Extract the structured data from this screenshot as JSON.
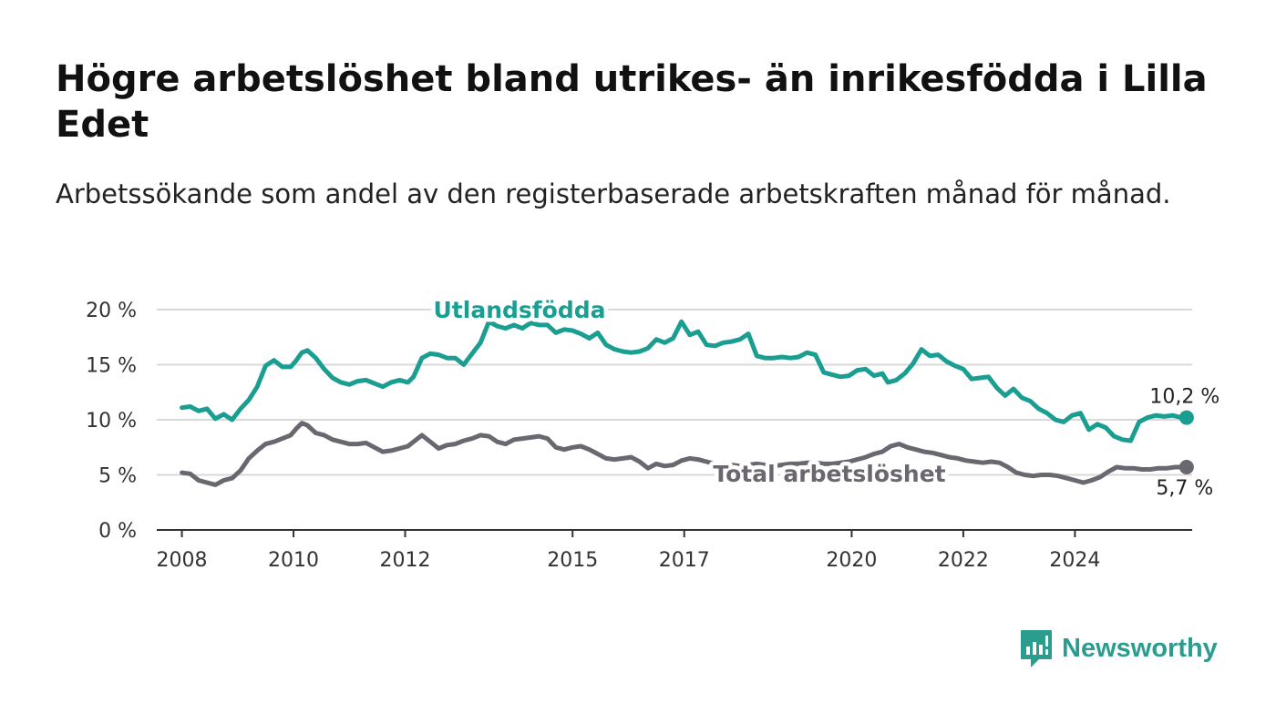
{
  "title": "Högre arbetslöshet bland utrikes- än inrikesfödda i Lilla Edet",
  "subtitle": "Arbetssökande som andel av den registerbaserade arbetskraften månad för månad.",
  "brand": {
    "name": "Newsworthy",
    "color": "#2a9d8f"
  },
  "chart_data": {
    "type": "line",
    "x_unit": "year",
    "xlim": [
      2007.55,
      2026.1
    ],
    "ylim": [
      0,
      20
    ],
    "x_ticks": [
      {
        "value": 2008,
        "label": "2008"
      },
      {
        "value": 2010,
        "label": "2010"
      },
      {
        "value": 2012,
        "label": "2012"
      },
      {
        "value": 2015,
        "label": "2015"
      },
      {
        "value": 2017,
        "label": "2017"
      },
      {
        "value": 2020,
        "label": "2020"
      },
      {
        "value": 2022,
        "label": "2022"
      },
      {
        "value": 2024,
        "label": "2024"
      }
    ],
    "y_ticks": [
      {
        "value": 0,
        "label": "0 %"
      },
      {
        "value": 5,
        "label": "5 %"
      },
      {
        "value": 10,
        "label": "10 %"
      },
      {
        "value": 15,
        "label": "15 %"
      },
      {
        "value": 20,
        "label": "20 %"
      }
    ],
    "grid": true,
    "series": [
      {
        "name": "Utlandsfödda",
        "color": "#1a9e92",
        "end_label": "10,2 %",
        "points": [
          [
            2008.0,
            11.1
          ],
          [
            2008.15,
            11.2
          ],
          [
            2008.3,
            10.8
          ],
          [
            2008.45,
            11.0
          ],
          [
            2008.6,
            10.1
          ],
          [
            2008.75,
            10.5
          ],
          [
            2008.9,
            10.0
          ],
          [
            2009.05,
            11.0
          ],
          [
            2009.2,
            11.8
          ],
          [
            2009.35,
            13.0
          ],
          [
            2009.5,
            14.9
          ],
          [
            2009.65,
            15.4
          ],
          [
            2009.8,
            14.8
          ],
          [
            2009.95,
            14.8
          ],
          [
            2010.05,
            15.4
          ],
          [
            2010.15,
            16.1
          ],
          [
            2010.25,
            16.3
          ],
          [
            2010.4,
            15.6
          ],
          [
            2010.55,
            14.6
          ],
          [
            2010.7,
            13.8
          ],
          [
            2010.85,
            13.4
          ],
          [
            2011.0,
            13.2
          ],
          [
            2011.15,
            13.5
          ],
          [
            2011.3,
            13.6
          ],
          [
            2011.45,
            13.3
          ],
          [
            2011.6,
            13.0
          ],
          [
            2011.75,
            13.4
          ],
          [
            2011.9,
            13.6
          ],
          [
            2012.05,
            13.4
          ],
          [
            2012.15,
            13.9
          ],
          [
            2012.3,
            15.6
          ],
          [
            2012.45,
            16.0
          ],
          [
            2012.6,
            15.9
          ],
          [
            2012.75,
            15.6
          ],
          [
            2012.9,
            15.6
          ],
          [
            2013.05,
            15.0
          ],
          [
            2013.2,
            16.0
          ],
          [
            2013.35,
            17.0
          ],
          [
            2013.5,
            18.9
          ],
          [
            2013.65,
            18.5
          ],
          [
            2013.8,
            18.3
          ],
          [
            2013.95,
            18.6
          ],
          [
            2014.1,
            18.3
          ],
          [
            2014.25,
            18.8
          ],
          [
            2014.4,
            18.6
          ],
          [
            2014.55,
            18.6
          ],
          [
            2014.7,
            17.9
          ],
          [
            2014.85,
            18.2
          ],
          [
            2015.0,
            18.1
          ],
          [
            2015.15,
            17.8
          ],
          [
            2015.3,
            17.4
          ],
          [
            2015.45,
            17.9
          ],
          [
            2015.6,
            16.8
          ],
          [
            2015.75,
            16.4
          ],
          [
            2015.9,
            16.2
          ],
          [
            2016.05,
            16.1
          ],
          [
            2016.2,
            16.2
          ],
          [
            2016.35,
            16.5
          ],
          [
            2016.5,
            17.3
          ],
          [
            2016.65,
            17.0
          ],
          [
            2016.8,
            17.4
          ],
          [
            2016.95,
            18.9
          ],
          [
            2017.1,
            17.7
          ],
          [
            2017.25,
            18.0
          ],
          [
            2017.4,
            16.8
          ],
          [
            2017.55,
            16.7
          ],
          [
            2017.7,
            17.0
          ],
          [
            2017.85,
            17.1
          ],
          [
            2018.0,
            17.3
          ],
          [
            2018.15,
            17.8
          ],
          [
            2018.3,
            15.8
          ],
          [
            2018.45,
            15.6
          ],
          [
            2018.6,
            15.6
          ],
          [
            2018.75,
            15.7
          ],
          [
            2018.9,
            15.6
          ],
          [
            2019.05,
            15.7
          ],
          [
            2019.2,
            16.1
          ],
          [
            2019.35,
            15.9
          ],
          [
            2019.5,
            14.3
          ],
          [
            2019.65,
            14.1
          ],
          [
            2019.8,
            13.9
          ],
          [
            2019.95,
            14.0
          ],
          [
            2020.1,
            14.5
          ],
          [
            2020.25,
            14.6
          ],
          [
            2020.4,
            14.0
          ],
          [
            2020.55,
            14.2
          ],
          [
            2020.65,
            13.4
          ],
          [
            2020.8,
            13.6
          ],
          [
            2020.95,
            14.2
          ],
          [
            2021.1,
            15.1
          ],
          [
            2021.25,
            16.4
          ],
          [
            2021.4,
            15.8
          ],
          [
            2021.55,
            15.9
          ],
          [
            2021.7,
            15.3
          ],
          [
            2021.85,
            14.9
          ],
          [
            2022.0,
            14.6
          ],
          [
            2022.15,
            13.7
          ],
          [
            2022.3,
            13.8
          ],
          [
            2022.45,
            13.9
          ],
          [
            2022.6,
            12.9
          ],
          [
            2022.75,
            12.2
          ],
          [
            2022.9,
            12.8
          ],
          [
            2023.05,
            12.0
          ],
          [
            2023.2,
            11.7
          ],
          [
            2023.35,
            11.0
          ],
          [
            2023.5,
            10.6
          ],
          [
            2023.65,
            10.0
          ],
          [
            2023.8,
            9.8
          ],
          [
            2023.95,
            10.4
          ],
          [
            2024.1,
            10.6
          ],
          [
            2024.25,
            9.1
          ],
          [
            2024.4,
            9.6
          ],
          [
            2024.55,
            9.3
          ],
          [
            2024.7,
            8.5
          ],
          [
            2024.85,
            8.2
          ],
          [
            2025.0,
            8.1
          ],
          [
            2025.15,
            9.8
          ],
          [
            2025.3,
            10.2
          ],
          [
            2025.45,
            10.4
          ],
          [
            2025.6,
            10.3
          ],
          [
            2025.75,
            10.4
          ],
          [
            2025.9,
            10.2
          ],
          [
            2026.0,
            10.2
          ]
        ]
      },
      {
        "name": "Total arbetslöshet",
        "color": "#6b6770",
        "end_label": "5,7 %",
        "points": [
          [
            2008.0,
            5.2
          ],
          [
            2008.15,
            5.1
          ],
          [
            2008.3,
            4.5
          ],
          [
            2008.45,
            4.3
          ],
          [
            2008.6,
            4.1
          ],
          [
            2008.75,
            4.5
          ],
          [
            2008.9,
            4.7
          ],
          [
            2009.05,
            5.4
          ],
          [
            2009.2,
            6.5
          ],
          [
            2009.35,
            7.2
          ],
          [
            2009.5,
            7.8
          ],
          [
            2009.65,
            8.0
          ],
          [
            2009.8,
            8.3
          ],
          [
            2009.95,
            8.6
          ],
          [
            2010.05,
            9.2
          ],
          [
            2010.15,
            9.7
          ],
          [
            2010.25,
            9.5
          ],
          [
            2010.4,
            8.8
          ],
          [
            2010.55,
            8.6
          ],
          [
            2010.7,
            8.2
          ],
          [
            2010.85,
            8.0
          ],
          [
            2011.0,
            7.8
          ],
          [
            2011.15,
            7.8
          ],
          [
            2011.3,
            7.9
          ],
          [
            2011.45,
            7.5
          ],
          [
            2011.6,
            7.1
          ],
          [
            2011.75,
            7.2
          ],
          [
            2011.9,
            7.4
          ],
          [
            2012.05,
            7.6
          ],
          [
            2012.15,
            8.0
          ],
          [
            2012.3,
            8.6
          ],
          [
            2012.45,
            8.0
          ],
          [
            2012.6,
            7.4
          ],
          [
            2012.75,
            7.7
          ],
          [
            2012.9,
            7.8
          ],
          [
            2013.05,
            8.1
          ],
          [
            2013.2,
            8.3
          ],
          [
            2013.35,
            8.6
          ],
          [
            2013.5,
            8.5
          ],
          [
            2013.65,
            8.0
          ],
          [
            2013.8,
            7.8
          ],
          [
            2013.95,
            8.2
          ],
          [
            2014.1,
            8.3
          ],
          [
            2014.25,
            8.4
          ],
          [
            2014.4,
            8.5
          ],
          [
            2014.55,
            8.3
          ],
          [
            2014.7,
            7.5
          ],
          [
            2014.85,
            7.3
          ],
          [
            2015.0,
            7.5
          ],
          [
            2015.15,
            7.6
          ],
          [
            2015.3,
            7.3
          ],
          [
            2015.45,
            6.9
          ],
          [
            2015.6,
            6.5
          ],
          [
            2015.75,
            6.4
          ],
          [
            2015.9,
            6.5
          ],
          [
            2016.05,
            6.6
          ],
          [
            2016.2,
            6.2
          ],
          [
            2016.35,
            5.6
          ],
          [
            2016.5,
            6.0
          ],
          [
            2016.65,
            5.8
          ],
          [
            2016.8,
            5.9
          ],
          [
            2016.95,
            6.3
          ],
          [
            2017.1,
            6.5
          ],
          [
            2017.25,
            6.4
          ],
          [
            2017.4,
            6.2
          ],
          [
            2017.55,
            6.0
          ],
          [
            2017.7,
            6.0
          ],
          [
            2017.85,
            5.9
          ],
          [
            2018.0,
            5.8
          ],
          [
            2018.15,
            5.9
          ],
          [
            2018.3,
            6.0
          ],
          [
            2018.45,
            5.9
          ],
          [
            2018.6,
            5.8
          ],
          [
            2018.75,
            5.9
          ],
          [
            2018.9,
            6.0
          ],
          [
            2019.05,
            6.0
          ],
          [
            2019.2,
            6.1
          ],
          [
            2019.35,
            6.1
          ],
          [
            2019.5,
            6.0
          ],
          [
            2019.65,
            6.0
          ],
          [
            2019.8,
            6.1
          ],
          [
            2019.95,
            6.2
          ],
          [
            2020.1,
            6.4
          ],
          [
            2020.25,
            6.6
          ],
          [
            2020.4,
            6.9
          ],
          [
            2020.55,
            7.1
          ],
          [
            2020.7,
            7.6
          ],
          [
            2020.85,
            7.8
          ],
          [
            2021.0,
            7.5
          ],
          [
            2021.15,
            7.3
          ],
          [
            2021.3,
            7.1
          ],
          [
            2021.45,
            7.0
          ],
          [
            2021.6,
            6.8
          ],
          [
            2021.75,
            6.6
          ],
          [
            2021.9,
            6.5
          ],
          [
            2022.05,
            6.3
          ],
          [
            2022.2,
            6.2
          ],
          [
            2022.35,
            6.1
          ],
          [
            2022.5,
            6.2
          ],
          [
            2022.65,
            6.1
          ],
          [
            2022.8,
            5.7
          ],
          [
            2022.95,
            5.2
          ],
          [
            2023.1,
            5.0
          ],
          [
            2023.25,
            4.9
          ],
          [
            2023.4,
            5.0
          ],
          [
            2023.55,
            5.0
          ],
          [
            2023.7,
            4.9
          ],
          [
            2023.85,
            4.7
          ],
          [
            2024.0,
            4.5
          ],
          [
            2024.15,
            4.3
          ],
          [
            2024.3,
            4.5
          ],
          [
            2024.45,
            4.8
          ],
          [
            2024.6,
            5.3
          ],
          [
            2024.75,
            5.7
          ],
          [
            2024.9,
            5.6
          ],
          [
            2025.05,
            5.6
          ],
          [
            2025.2,
            5.5
          ],
          [
            2025.35,
            5.5
          ],
          [
            2025.5,
            5.6
          ],
          [
            2025.65,
            5.6
          ],
          [
            2025.8,
            5.7
          ],
          [
            2025.9,
            5.7
          ],
          [
            2026.0,
            5.7
          ]
        ]
      }
    ]
  }
}
